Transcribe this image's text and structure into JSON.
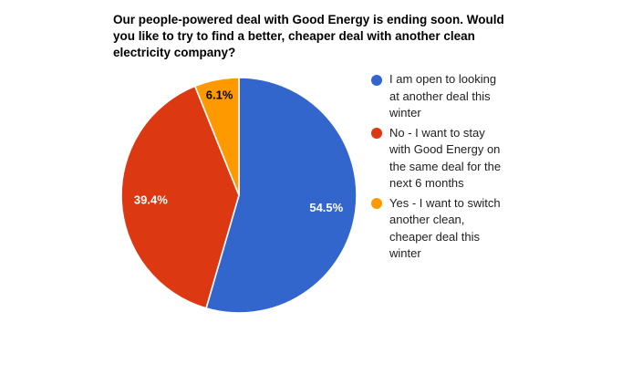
{
  "title": {
    "lines": [
      "Our people-powered deal with Good Energy is ending soon. Would",
      "you like to try to find a better, cheaper deal with another clean",
      "electricity company?"
    ]
  },
  "chart_data": {
    "type": "pie",
    "title": "Our people-powered deal with Good Energy is ending soon. Would you like to try to find a better, cheaper deal with another clean electricity company?",
    "legend_position": "right",
    "background_color": "#FFFFFF",
    "slice_border_color": "#FFFFFF",
    "start_angle": "12 o'clock, clockwise",
    "slices": [
      {
        "label": "I am open to looking at another deal this winter",
        "value": 54.5,
        "pct_label": "54.5%",
        "color": "#3366CC",
        "label_color": "#FFFFFF",
        "label_r_frac": 0.75
      },
      {
        "label": "No - I want to stay with Good Energy on the same deal for the next 6 months",
        "value": 39.4,
        "pct_label": "39.4%",
        "color": "#DC3912",
        "label_color": "#FFFFFF",
        "label_r_frac": 0.75
      },
      {
        "label": "Yes - I want to switch another clean, cheaper deal this winter",
        "value": 6.1,
        "pct_label": "6.1%",
        "color": "#FF9900",
        "label_color": "#000000",
        "label_r_frac": 0.87
      }
    ]
  },
  "legend": {
    "items": [
      {
        "color": "#3366CC",
        "lines": [
          "I am open to looking",
          "at another deal this",
          "winter"
        ]
      },
      {
        "color": "#DC3912",
        "lines": [
          "No - I want to stay",
          "with Good Energy on",
          "the same deal for the",
          "next 6 months"
        ]
      },
      {
        "color": "#FF9900",
        "lines": [
          "Yes - I want to switch",
          "another clean,",
          "cheaper deal this",
          "winter"
        ]
      }
    ]
  }
}
